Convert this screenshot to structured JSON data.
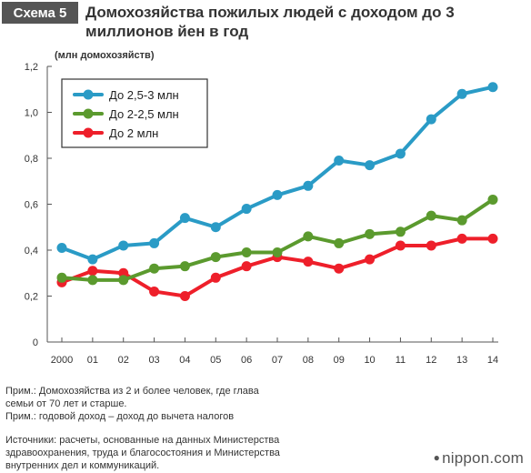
{
  "header": {
    "badge": "Схема 5",
    "title": "Домохозяйства пожилых людей с доходом до 3 миллионов йен в год"
  },
  "chart_data": {
    "type": "line",
    "ylabel": "(млн домохозяйств)",
    "x": [
      "2000",
      "01",
      "02",
      "03",
      "04",
      "05",
      "06",
      "07",
      "08",
      "09",
      "10",
      "11",
      "12",
      "13",
      "14"
    ],
    "ylim": [
      0,
      1.2
    ],
    "yticks": [
      "0",
      "0,2",
      "0,4",
      "0,6",
      "0,8",
      "1,0",
      "1,2"
    ],
    "grid": false,
    "legend": "top-left",
    "series": [
      {
        "name": "До 2,5-3 млн",
        "color": "#2a9bc6",
        "values": [
          0.41,
          0.36,
          0.42,
          0.43,
          0.54,
          0.5,
          0.58,
          0.64,
          0.68,
          0.79,
          0.77,
          0.82,
          0.97,
          1.08,
          1.11
        ]
      },
      {
        "name": "До 2-2,5 млн",
        "color": "#5b9a2e",
        "values": [
          0.28,
          0.27,
          0.27,
          0.32,
          0.33,
          0.37,
          0.39,
          0.39,
          0.46,
          0.43,
          0.47,
          0.48,
          0.55,
          0.53,
          0.62
        ]
      },
      {
        "name": "До 2 млн",
        "color": "#ee1f2a",
        "values": [
          0.26,
          0.31,
          0.3,
          0.22,
          0.2,
          0.28,
          0.33,
          0.37,
          0.35,
          0.32,
          0.36,
          0.42,
          0.42,
          0.45,
          0.45
        ]
      }
    ]
  },
  "notes": {
    "line1": "Прим.: Домохозяйства из 2 и более человек, где глава",
    "line2": "семьи от 70 лет и старше.",
    "line3": "Прим.: годовой доход – доход до вычета налогов"
  },
  "sources": {
    "line1": "Источники: расчеты, основанные на данных Министерства",
    "line2": "здравоохранения, труда и благосостояния и Министерства",
    "line3": "внутренних дел и коммуникаций."
  },
  "brand": {
    "dot": "●",
    "name": "nippon.com"
  }
}
